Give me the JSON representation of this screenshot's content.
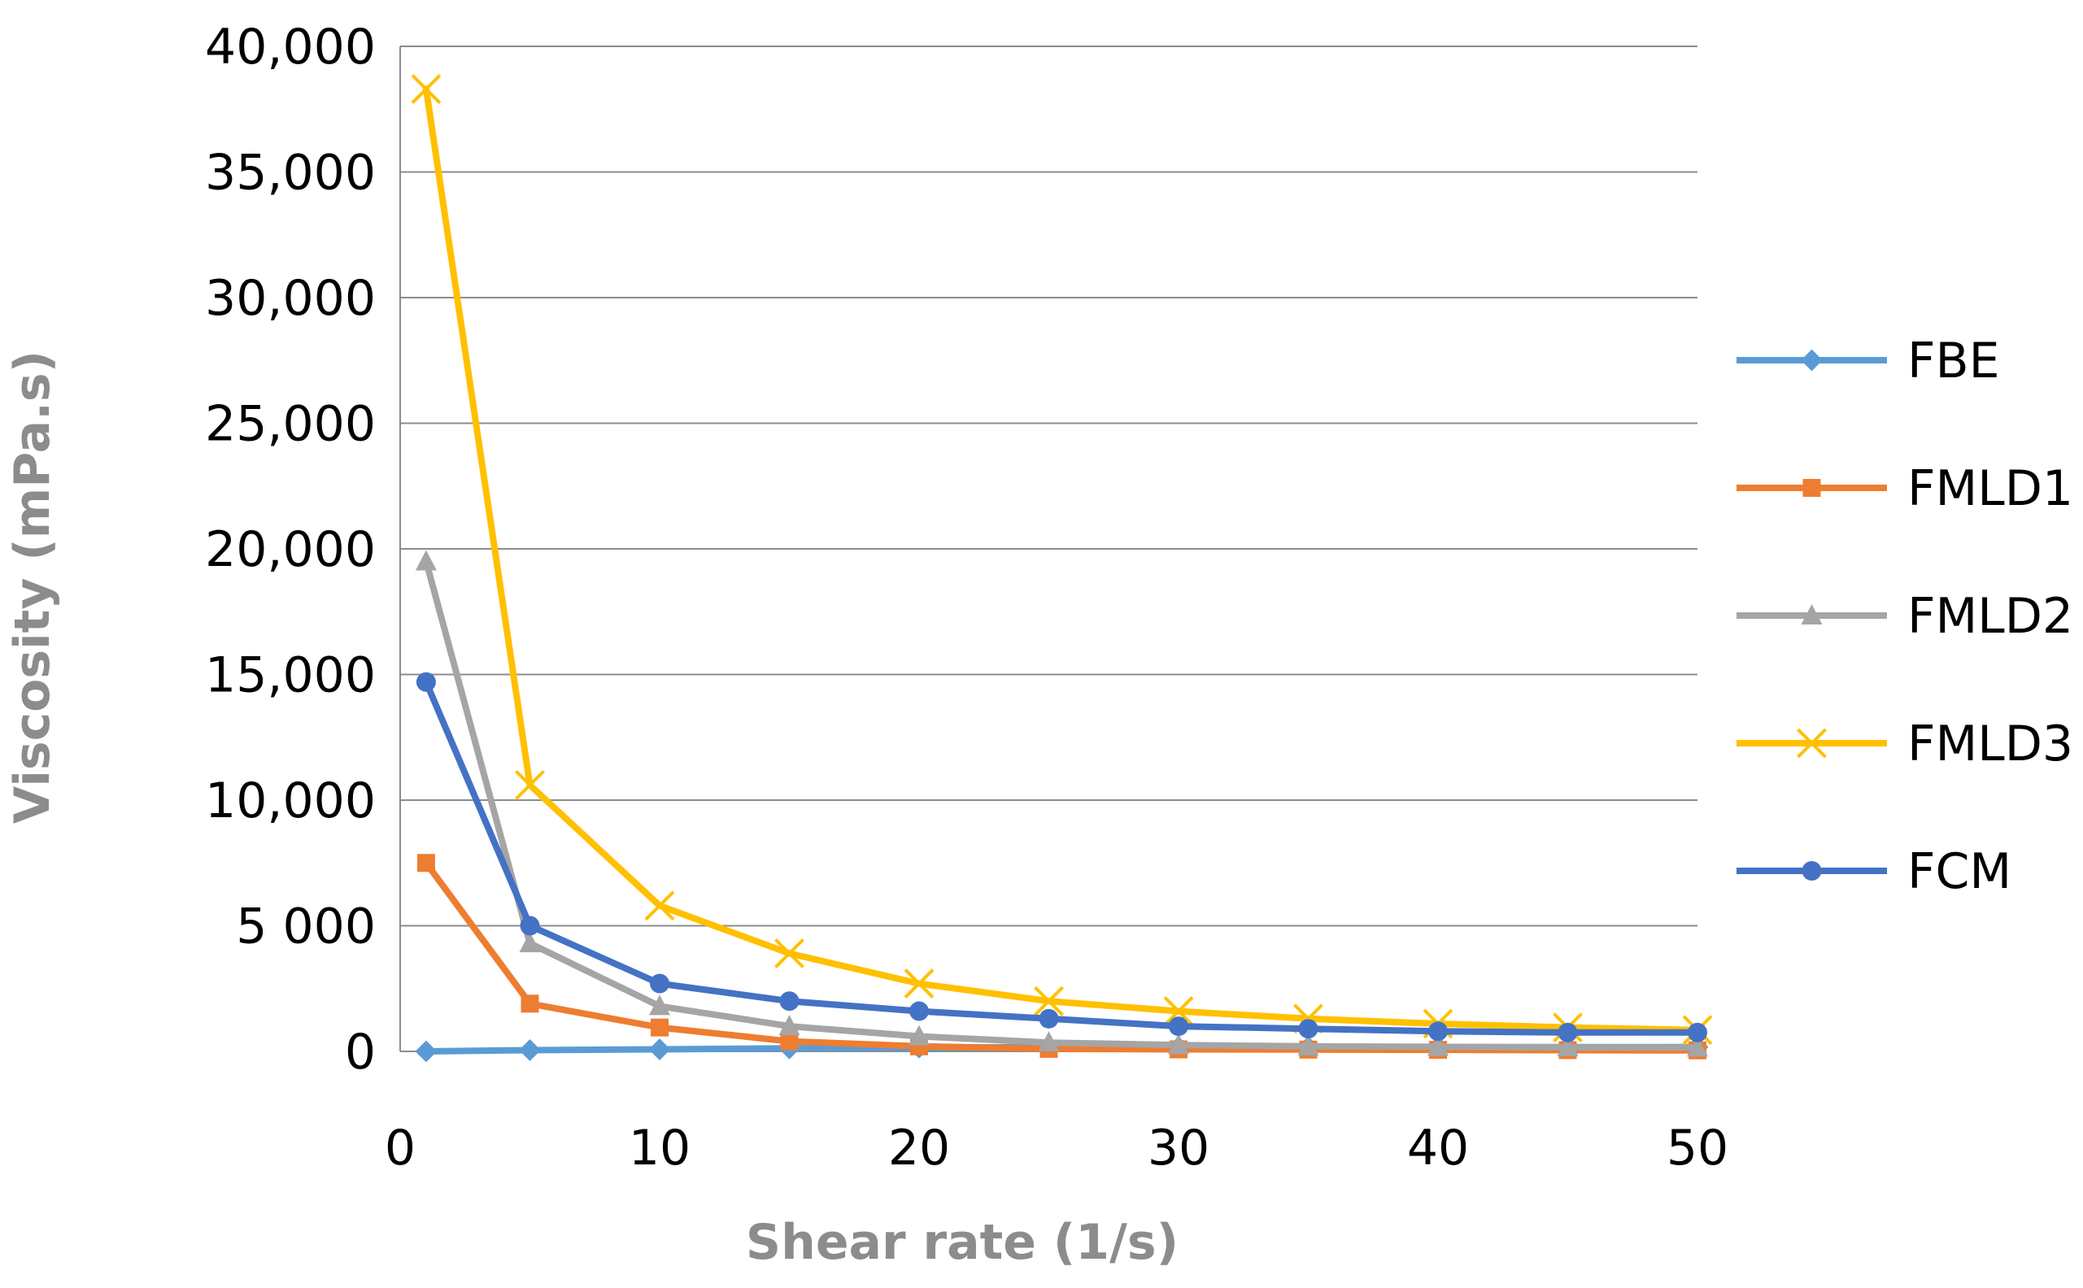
{
  "chart_data": {
    "type": "line",
    "title": "",
    "xlabel": "Shear rate (1/s)",
    "ylabel": "Viscosity (mPa.s)",
    "xlim": [
      0,
      50
    ],
    "ylim": [
      0,
      40000
    ],
    "grid": "horizontal",
    "legend_position": "right",
    "x_ticks": [
      {
        "value": 0,
        "label": "0"
      },
      {
        "value": 10,
        "label": "10"
      },
      {
        "value": 20,
        "label": "20"
      },
      {
        "value": 30,
        "label": "30"
      },
      {
        "value": 40,
        "label": "40"
      },
      {
        "value": 50,
        "label": "50"
      }
    ],
    "y_ticks": [
      {
        "value": 0,
        "label": "0"
      },
      {
        "value": 5000,
        "label": "5 000"
      },
      {
        "value": 10000,
        "label": "10,000"
      },
      {
        "value": 15000,
        "label": "15,000"
      },
      {
        "value": 20000,
        "label": "20,000"
      },
      {
        "value": 25000,
        "label": "25,000"
      },
      {
        "value": 30000,
        "label": "30,000"
      },
      {
        "value": 35000,
        "label": "35,000"
      },
      {
        "value": 40000,
        "label": "40,000"
      }
    ],
    "x": [
      1,
      5,
      10,
      15,
      20,
      25,
      30,
      35,
      40,
      45,
      50
    ],
    "series": [
      {
        "name": "FBE",
        "color": "#5b9bd5",
        "marker": "diamond",
        "values": [
          0,
          50,
          80,
          120,
          150,
          170,
          170,
          170,
          170,
          170,
          170
        ]
      },
      {
        "name": "FMLD1",
        "color": "#ed7d31",
        "marker": "square",
        "values": [
          7500,
          1900,
          950,
          400,
          200,
          100,
          80,
          70,
          60,
          50,
          40
        ]
      },
      {
        "name": "FMLD2",
        "color": "#a5a5a5",
        "marker": "triangle",
        "values": [
          19500,
          4300,
          1800,
          1000,
          600,
          350,
          250,
          200,
          180,
          160,
          150
        ]
      },
      {
        "name": "FMLD3",
        "color": "#ffc000",
        "marker": "x",
        "values": [
          38300,
          10600,
          5800,
          3900,
          2700,
          2000,
          1600,
          1300,
          1100,
          950,
          850
        ]
      },
      {
        "name": "FCM",
        "color": "#4472c4",
        "marker": "circle",
        "values": [
          14700,
          5000,
          2700,
          2000,
          1600,
          1300,
          1000,
          900,
          800,
          750,
          750
        ]
      }
    ]
  }
}
